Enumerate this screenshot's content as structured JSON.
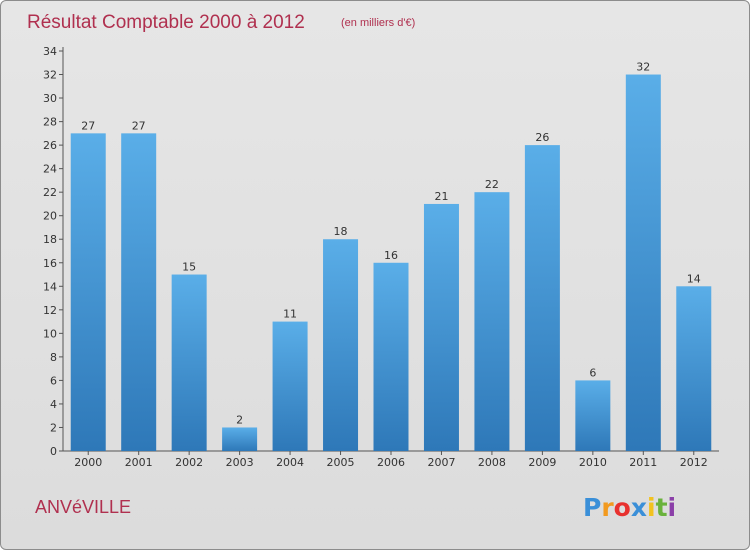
{
  "chart_data": {
    "type": "bar",
    "title": "Résultat Comptable 2000 à 2012",
    "subtitle": "(en milliers d'€)",
    "categories": [
      "2000",
      "2001",
      "2002",
      "2003",
      "2004",
      "2005",
      "2006",
      "2007",
      "2008",
      "2009",
      "2010",
      "2011",
      "2012"
    ],
    "values": [
      27,
      27,
      15,
      2,
      11,
      18,
      16,
      21,
      22,
      26,
      6,
      32,
      14
    ],
    "data_labels": [
      "27",
      "27",
      "15",
      "2",
      "11",
      "18",
      "16",
      "21",
      "22",
      "26",
      "6",
      "32",
      "14"
    ],
    "ylim": [
      0,
      34
    ],
    "yticks": [
      0,
      2,
      4,
      6,
      8,
      10,
      12,
      14,
      16,
      18,
      20,
      22,
      24,
      26,
      28,
      30,
      32,
      34
    ],
    "xlabel": "",
    "ylabel": "",
    "grid": false,
    "bar_color_top": "#5aaee8",
    "bar_color_bottom": "#2e78b8"
  },
  "footer": {
    "commune": "ANVéVILLE",
    "logo_letters": [
      "P",
      "r",
      "o",
      "x",
      "i",
      "t",
      "i"
    ],
    "logo_colors": [
      "#3a8fd8",
      "#f29a1f",
      "#e8312f",
      "#3a8fd8",
      "#f2c21f",
      "#6ab23c",
      "#8b3fa8"
    ]
  }
}
